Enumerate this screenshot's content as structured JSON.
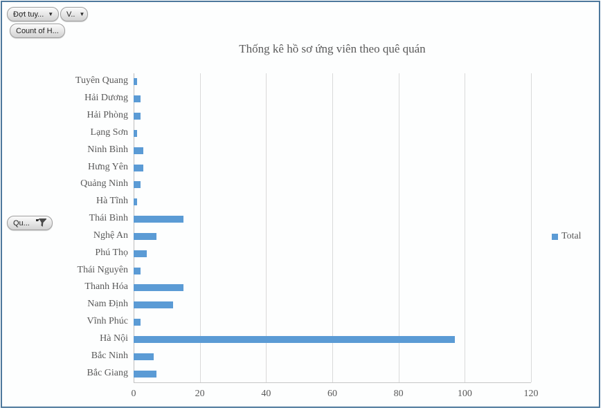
{
  "window": {
    "frame_border_color": "#4d789c",
    "background": "#fdfefe"
  },
  "field_buttons": {
    "dot_tuyen": {
      "label": "Đợt tuy...",
      "type": "dropdown"
    },
    "v": {
      "label": "V..",
      "type": "dropdown"
    },
    "count_of_h": {
      "label": "Count of H..."
    },
    "qu": {
      "label": "Qu...",
      "filtered": true
    }
  },
  "legend": {
    "label": "Total",
    "swatch_color": "#5b9bd5",
    "position": "right"
  },
  "chart_data": {
    "type": "bar",
    "orientation": "horizontal",
    "title": "Thống kê hồ sơ ứng viên theo quê quán",
    "categories": [
      "Tuyên Quang",
      "Hải Dương",
      "Hải Phòng",
      "Lạng Sơn",
      "Ninh Bình",
      "Hưng Yên",
      "Quảng Ninh",
      "Hà Tĩnh",
      "Thái Bình",
      "Nghệ An",
      "Phú Thọ",
      "Thái Nguyên",
      "Thanh Hóa",
      "Nam Định",
      "Vĩnh Phúc",
      "Hà Nội",
      "Bắc Ninh",
      "Bắc Giang"
    ],
    "series": [
      {
        "name": "Total",
        "values": [
          1,
          2,
          2,
          1,
          3,
          3,
          2,
          1,
          15,
          7,
          4,
          2,
          15,
          12,
          2,
          97,
          6,
          7
        ]
      }
    ],
    "x_ticks": [
      0,
      20,
      40,
      60,
      80,
      100,
      120
    ],
    "xlim": [
      0,
      120
    ],
    "bar_color": "#5b9bd5",
    "gridlines": true,
    "grid_color": "#d9d9d9",
    "text_color": "#595959",
    "legend_position": "right"
  }
}
